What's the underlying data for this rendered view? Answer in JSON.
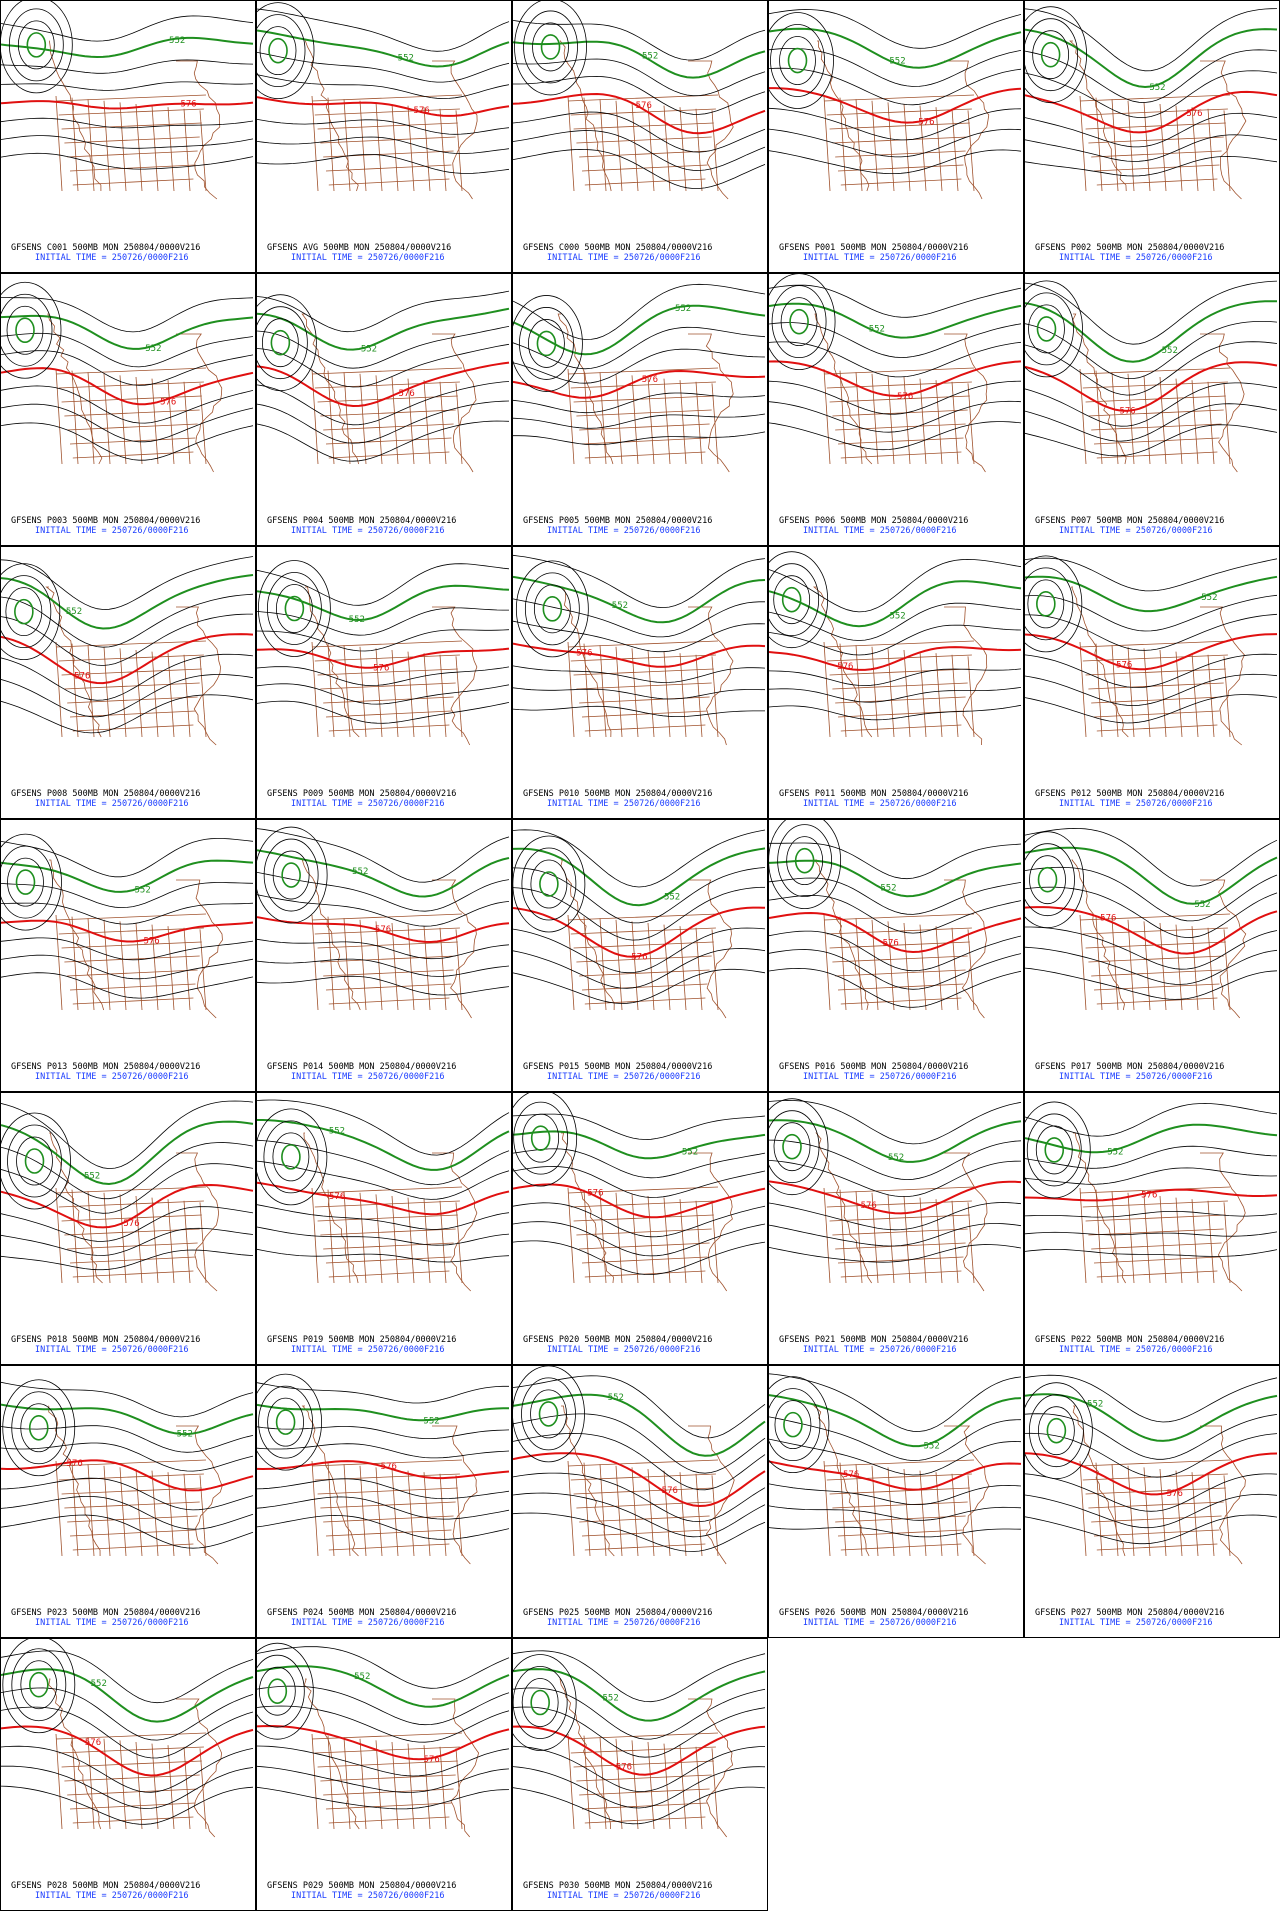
{
  "contour_labels": [
    "552",
    "576"
  ],
  "panels": [
    {
      "label": "GFSENS C001 500MB MON 250804/0000V216",
      "init": "INITIAL TIME = 250726/0000F216"
    },
    {
      "label": "GFSENS AVG 500MB MON 250804/0000V216",
      "init": "INITIAL TIME = 250726/0000F216"
    },
    {
      "label": "GFSENS C000 500MB MON 250804/0000V216",
      "init": "INITIAL TIME = 250726/0000F216"
    },
    {
      "label": "GFSENS P001 500MB MON 250804/0000V216",
      "init": "INITIAL TIME = 250726/0000F216"
    },
    {
      "label": "GFSENS P002 500MB MON 250804/0000V216",
      "init": "INITIAL TIME = 250726/0000F216"
    },
    {
      "label": "GFSENS P003 500MB MON 250804/0000V216",
      "init": "INITIAL TIME = 250726/0000F216"
    },
    {
      "label": "GFSENS P004 500MB MON 250804/0000V216",
      "init": "INITIAL TIME = 250726/0000F216"
    },
    {
      "label": "GFSENS P005 500MB MON 250804/0000V216",
      "init": "INITIAL TIME = 250726/0000F216"
    },
    {
      "label": "GFSENS P006 500MB MON 250804/0000V216",
      "init": "INITIAL TIME = 250726/0000F216"
    },
    {
      "label": "GFSENS P007 500MB MON 250804/0000V216",
      "init": "INITIAL TIME = 250726/0000F216"
    },
    {
      "label": "GFSENS P008 500MB MON 250804/0000V216",
      "init": "INITIAL TIME = 250726/0000F216"
    },
    {
      "label": "GFSENS P009 500MB MON 250804/0000V216",
      "init": "INITIAL TIME = 250726/0000F216"
    },
    {
      "label": "GFSENS P010 500MB MON 250804/0000V216",
      "init": "INITIAL TIME = 250726/0000F216"
    },
    {
      "label": "GFSENS P011 500MB MON 250804/0000V216",
      "init": "INITIAL TIME = 250726/0000F216"
    },
    {
      "label": "GFSENS P012 500MB MON 250804/0000V216",
      "init": "INITIAL TIME = 250726/0000F216"
    },
    {
      "label": "GFSENS P013 500MB MON 250804/0000V216",
      "init": "INITIAL TIME = 250726/0000F216"
    },
    {
      "label": "GFSENS P014 500MB MON 250804/0000V216",
      "init": "INITIAL TIME = 250726/0000F216"
    },
    {
      "label": "GFSENS P015 500MB MON 250804/0000V216",
      "init": "INITIAL TIME = 250726/0000F216"
    },
    {
      "label": "GFSENS P016 500MB MON 250804/0000V216",
      "init": "INITIAL TIME = 250726/0000F216"
    },
    {
      "label": "GFSENS P017 500MB MON 250804/0000V216",
      "init": "INITIAL TIME = 250726/0000F216"
    },
    {
      "label": "GFSENS P018 500MB MON 250804/0000V216",
      "init": "INITIAL TIME = 250726/0000F216"
    },
    {
      "label": "GFSENS P019 500MB MON 250804/0000V216",
      "init": "INITIAL TIME = 250726/0000F216"
    },
    {
      "label": "GFSENS P020 500MB MON 250804/0000V216",
      "init": "INITIAL TIME = 250726/0000F216"
    },
    {
      "label": "GFSENS P021 500MB MON 250804/0000V216",
      "init": "INITIAL TIME = 250726/0000F216"
    },
    {
      "label": "GFSENS P022 500MB MON 250804/0000V216",
      "init": "INITIAL TIME = 250726/0000F216"
    },
    {
      "label": "GFSENS P023 500MB MON 250804/0000V216",
      "init": "INITIAL TIME = 250726/0000F216"
    },
    {
      "label": "GFSENS P024 500MB MON 250804/0000V216",
      "init": "INITIAL TIME = 250726/0000F216"
    },
    {
      "label": "GFSENS P025 500MB MON 250804/0000V216",
      "init": "INITIAL TIME = 250726/0000F216"
    },
    {
      "label": "GFSENS P026 500MB MON 250804/0000V216",
      "init": "INITIAL TIME = 250726/0000F216"
    },
    {
      "label": "GFSENS P027 500MB MON 250804/0000V216",
      "init": "INITIAL TIME = 250726/0000F216"
    },
    {
      "label": "GFSENS P028 500MB MON 250804/0000V216",
      "init": "INITIAL TIME = 250726/0000F216"
    },
    {
      "label": "GFSENS P029 500MB MON 250804/0000V216",
      "init": "INITIAL TIME = 250726/0000F216"
    },
    {
      "label": "GFSENS P030 500MB MON 250804/0000V216",
      "init": "INITIAL TIME = 250726/0000F216"
    }
  ]
}
